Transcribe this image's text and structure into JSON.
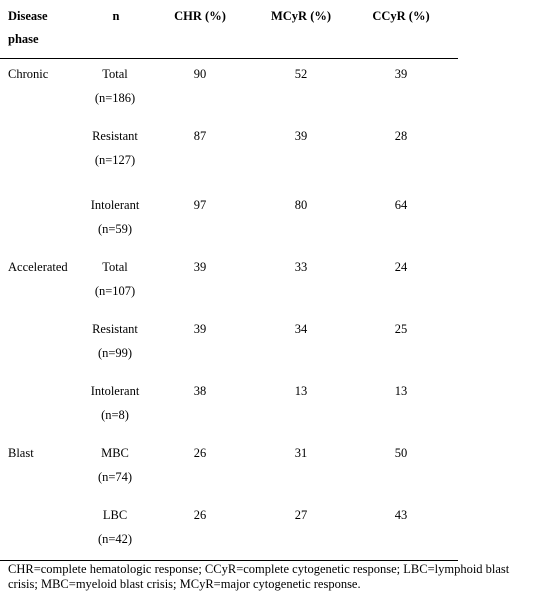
{
  "table": {
    "headers": {
      "phase_line1": "Disease",
      "phase_line2": "phase",
      "n": "n",
      "chr": "CHR (%)",
      "mcyr": "MCyR (%)",
      "ccyr": "CCyR (%)"
    },
    "rows": [
      {
        "phase": "Chronic",
        "group": "Total",
        "n": "(n=186)",
        "chr": "90",
        "mcyr": "52",
        "ccyr": "39"
      },
      {
        "phase": "",
        "group": "Resistant",
        "n": "(n=127)",
        "chr": "87",
        "mcyr": "39",
        "ccyr": "28"
      },
      {
        "phase": "",
        "group": "Intolerant",
        "n": "(n=59)",
        "chr": "97",
        "mcyr": "80",
        "ccyr": "64"
      },
      {
        "phase": "Accelerated",
        "group": "Total",
        "n": "(n=107)",
        "chr": "39",
        "mcyr": "33",
        "ccyr": "24"
      },
      {
        "phase": "",
        "group": "Resistant",
        "n": "(n=99)",
        "chr": "39",
        "mcyr": "34",
        "ccyr": "25"
      },
      {
        "phase": "",
        "group": "Intolerant",
        "n": "(n=8)",
        "chr": "38",
        "mcyr": "13",
        "ccyr": "13"
      },
      {
        "phase": "Blast",
        "group": "MBC",
        "n": "(n=74)",
        "chr": "26",
        "mcyr": "31",
        "ccyr": "50"
      },
      {
        "phase": "",
        "group": "LBC",
        "n": "(n=42)",
        "chr": "26",
        "mcyr": "27",
        "ccyr": "43"
      }
    ]
  },
  "footnote": "CHR=complete hematologic response; CCyR=complete cytogenetic response; LBC=lymphoid blast crisis; MBC=myeloid blast crisis; MCyR=major cytogenetic response."
}
